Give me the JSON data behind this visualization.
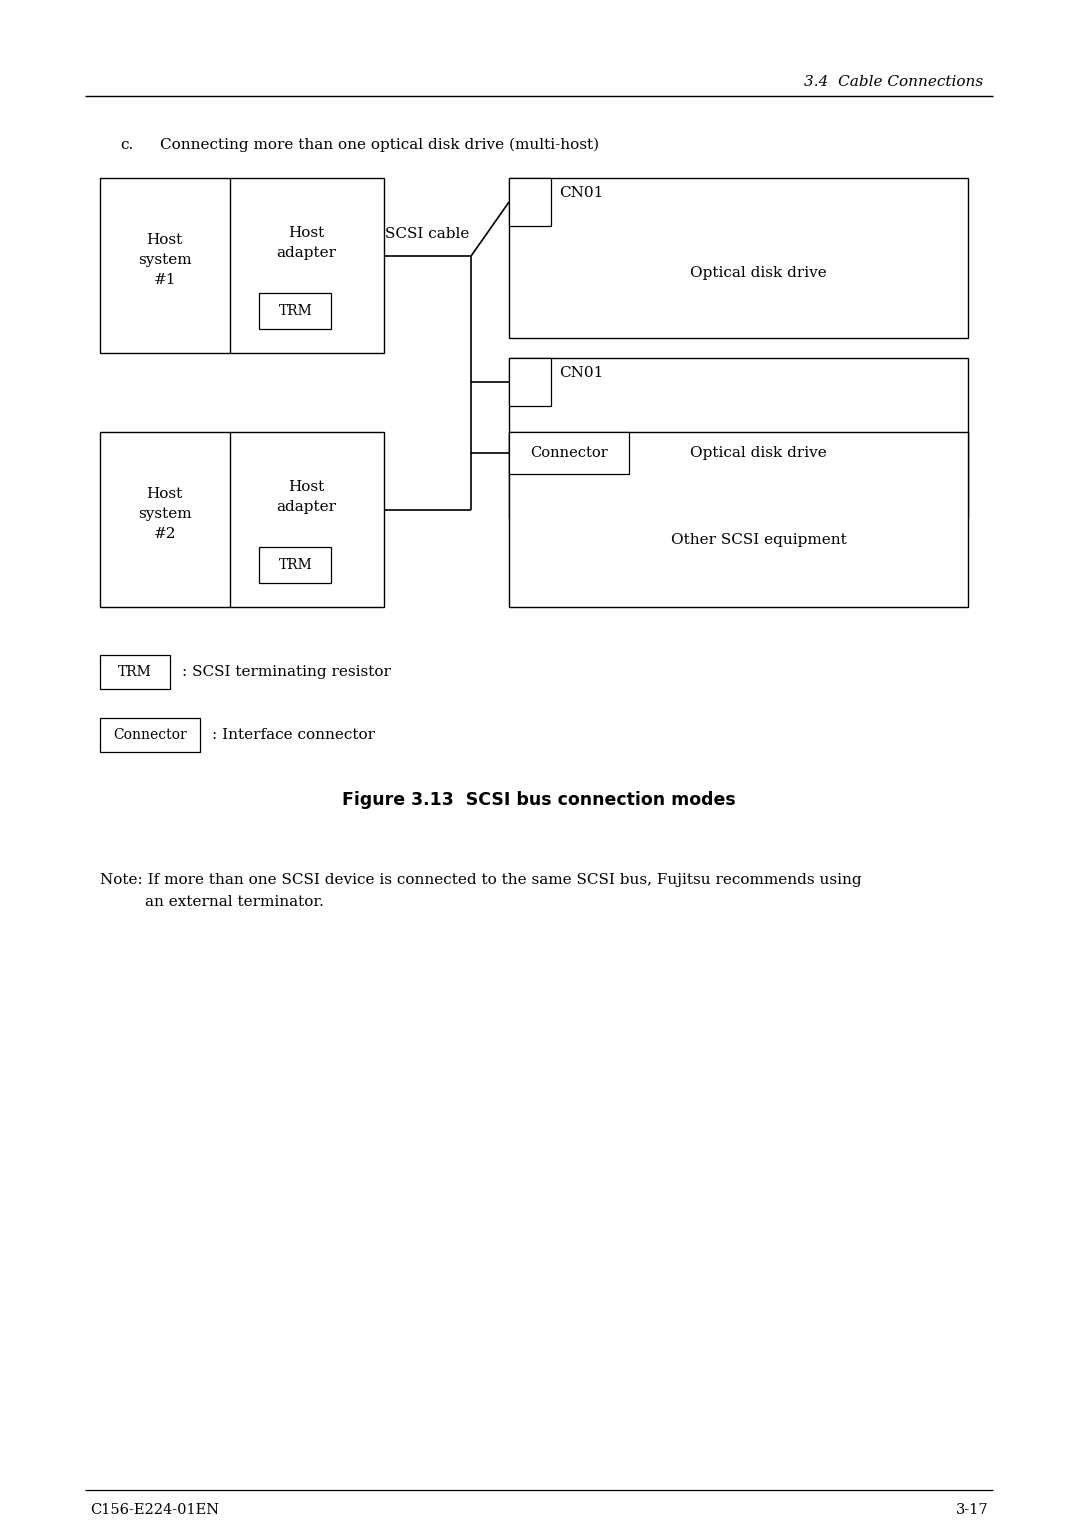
{
  "page_header": "3.4  Cable Connections",
  "section_label": "c.",
  "section_text": "Connecting more than one optical disk drive (multi-host)",
  "figure_caption": "Figure 3.13  SCSI bus connection modes",
  "footer_left": "C156-E224-01EN",
  "footer_right": "3-17",
  "bg_color": "#ffffff",
  "line_color": "#000000",
  "text_color": "#000000",
  "note_line1": "Note: If more than one SCSI device is connected to the same SCSI bus, Fujitsu recommends using",
  "note_line2": "      an external terminator."
}
